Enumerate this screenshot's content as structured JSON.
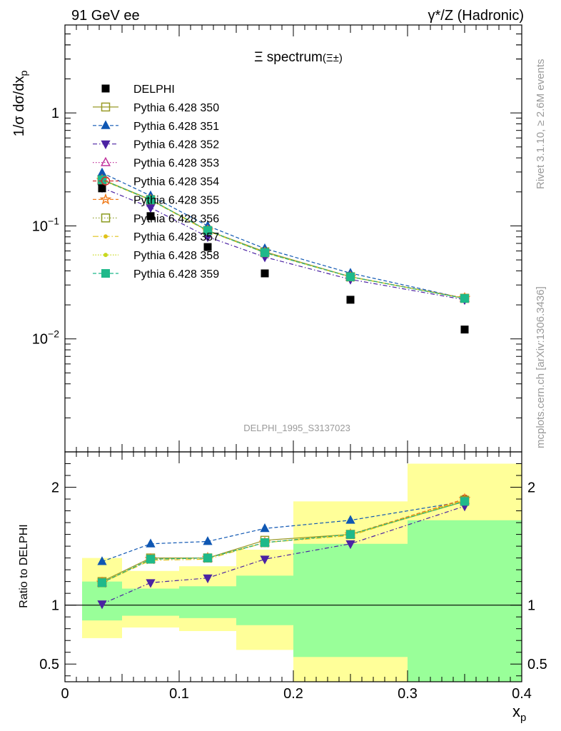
{
  "header": {
    "left": "91 GeV ee",
    "right": "γ*/Z (Hadronic)"
  },
  "side_text": {
    "rivet": "Rivet 3.1.10, ≥ 2.6M events",
    "source": "mcplots.cern.ch [arXiv:1306.3436]"
  },
  "chart_data": [
    {
      "panel": "main",
      "type": "line",
      "title": "Ξ spectrum",
      "title_suffix": "(Ξ±)",
      "ylabel": "1/σ dσ/dx_p",
      "ylabel_main": "1/σ dσ/dx",
      "ylabel_sub": "p",
      "yscale": "log",
      "xlim": [
        0,
        0.4
      ],
      "ylim": [
        0.001,
        6
      ],
      "y_ticks": [
        {
          "value": 1,
          "base": "1",
          "exp": ""
        },
        {
          "value": 0.1,
          "base": "10",
          "exp": "−1"
        },
        {
          "value": 0.01,
          "base": "10",
          "exp": "−2"
        }
      ],
      "watermark": "DELPHI_1995_S3137023",
      "legend_position": "top-left",
      "x": [
        0.0325,
        0.075,
        0.125,
        0.175,
        0.25,
        0.35
      ],
      "data": {
        "name": "DELPHI",
        "y": [
          0.215,
          0.122,
          0.065,
          0.038,
          0.0222,
          0.0121
        ]
      },
      "series": [
        {
          "name": "Pythia 6.428 350",
          "color": "#999a27",
          "marker": "square-open",
          "dash": "",
          "y": [
            0.258,
            0.171,
            0.091,
            0.059,
            0.0355,
            0.0228
          ]
        },
        {
          "name": "Pythia 6.428 351",
          "color": "#0f57b3",
          "marker": "triangle-up",
          "dash": "5,3",
          "y": [
            0.295,
            0.185,
            0.1,
            0.063,
            0.0382,
            0.0228
          ]
        },
        {
          "name": "Pythia 6.428 352",
          "color": "#4b22a3",
          "marker": "triangle-down",
          "dash": "6,3,1.5,3",
          "y": [
            0.218,
            0.145,
            0.08,
            0.053,
            0.0336,
            0.0222
          ]
        },
        {
          "name": "Pythia 6.428 353",
          "color": "#c1359d",
          "marker": "triangle-open",
          "dash": "1.5,2.5",
          "y": [
            0.255,
            0.17,
            0.091,
            0.058,
            0.0354,
            0.0229
          ]
        },
        {
          "name": "Pythia 6.428 354",
          "color": "#d62a2a",
          "marker": "circle-open",
          "dash": "5,3",
          "y": [
            0.255,
            0.17,
            0.091,
            0.058,
            0.0354,
            0.023
          ]
        },
        {
          "name": "Pythia 6.428 355",
          "color": "#f07d1e",
          "marker": "star-open",
          "dash": "5,3",
          "y": [
            0.255,
            0.17,
            0.091,
            0.058,
            0.0354,
            0.023
          ]
        },
        {
          "name": "Pythia 6.428 356",
          "color": "#8a9a1e",
          "marker": "square-open",
          "dash": "1.5,2.5",
          "y": [
            0.255,
            0.17,
            0.091,
            0.058,
            0.0354,
            0.0229
          ]
        },
        {
          "name": "Pythia 6.428 357",
          "color": "#e0c21a",
          "marker": "dot",
          "dash": "8,3,1.5,3",
          "y": [
            0.255,
            0.169,
            0.09,
            0.058,
            0.0353,
            0.0229
          ]
        },
        {
          "name": "Pythia 6.428 358",
          "color": "#c8d81e",
          "marker": "dot",
          "dash": "1.5,2",
          "y": [
            0.255,
            0.17,
            0.091,
            0.058,
            0.0354,
            0.0229
          ]
        },
        {
          "name": "Pythia 6.428 359",
          "color": "#1fb98a",
          "marker": "square",
          "dash": "5,3",
          "y": [
            0.256,
            0.17,
            0.091,
            0.058,
            0.0354,
            0.0228
          ]
        }
      ]
    },
    {
      "panel": "ratio",
      "type": "line",
      "ylabel": "Ratio to DELPHI",
      "xlabel": "x_p",
      "xlabel_main": "x",
      "xlabel_sub": "p",
      "xlim": [
        0,
        0.4
      ],
      "ylim": [
        0.35,
        2.3
      ],
      "x_ticks": [
        "0",
        "0.1",
        "0.2",
        "0.3",
        "0.4"
      ],
      "y_ticks": [
        "2",
        "1",
        "0.5"
      ],
      "bands": [
        {
          "xlo": 0.015,
          "xhi": 0.05,
          "stat_lo": 0.87,
          "stat_hi": 1.2,
          "tot_lo": 0.72,
          "tot_hi": 1.4
        },
        {
          "xlo": 0.05,
          "xhi": 0.1,
          "stat_lo": 0.91,
          "stat_hi": 1.14,
          "tot_lo": 0.81,
          "tot_hi": 1.29
        },
        {
          "xlo": 0.1,
          "xhi": 0.15,
          "stat_lo": 0.89,
          "stat_hi": 1.16,
          "tot_lo": 0.78,
          "tot_hi": 1.33
        },
        {
          "xlo": 0.15,
          "xhi": 0.2,
          "stat_lo": 0.83,
          "stat_hi": 1.25,
          "tot_lo": 0.62,
          "tot_hi": 1.47
        },
        {
          "xlo": 0.2,
          "xhi": 0.3,
          "stat_lo": 0.56,
          "stat_hi": 1.52,
          "tot_lo": 0.35,
          "tot_hi": 1.88
        },
        {
          "xlo": 0.3,
          "xhi": 0.4,
          "stat_lo": 0.35,
          "stat_hi": 1.72,
          "tot_lo": 0.35,
          "tot_hi": 2.2
        }
      ],
      "series_ratio": [
        [
          1.2,
          1.4,
          1.4,
          1.55,
          1.6,
          1.88
        ],
        [
          1.37,
          1.52,
          1.54,
          1.65,
          1.72,
          1.88
        ],
        [
          1.01,
          1.19,
          1.23,
          1.39,
          1.52,
          1.84
        ],
        [
          1.19,
          1.39,
          1.4,
          1.53,
          1.6,
          1.89
        ],
        [
          1.19,
          1.39,
          1.4,
          1.53,
          1.6,
          1.9
        ],
        [
          1.19,
          1.39,
          1.4,
          1.53,
          1.6,
          1.9
        ],
        [
          1.19,
          1.39,
          1.4,
          1.53,
          1.6,
          1.89
        ],
        [
          1.19,
          1.38,
          1.39,
          1.53,
          1.59,
          1.89
        ],
        [
          1.19,
          1.39,
          1.4,
          1.53,
          1.6,
          1.89
        ],
        [
          1.19,
          1.39,
          1.4,
          1.53,
          1.6,
          1.88
        ]
      ]
    }
  ]
}
